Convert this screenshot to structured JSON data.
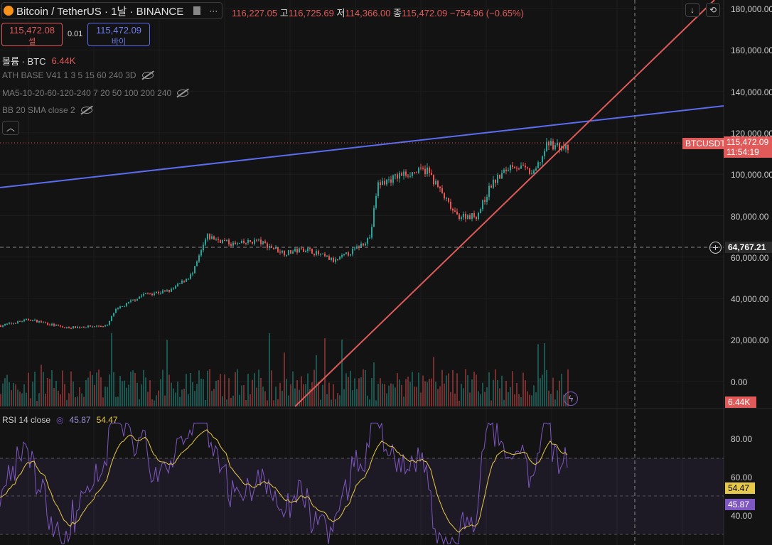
{
  "header": {
    "symbol": "Bitcoin / TetherUS · 1날 · BINANCE",
    "more": "···",
    "open": "116,227.05",
    "high_label": "고",
    "high": "116,725.69",
    "low_label": "저",
    "low": "114,366.00",
    "close_label": "종",
    "close": "115,472.09",
    "change": "−754.96 (−0.65%)"
  },
  "sell": {
    "price": "115,472.08",
    "label": "셀"
  },
  "spread": "0.01",
  "buy": {
    "price": "115,472.09",
    "label": "바이"
  },
  "indicators": {
    "volume_label": "볼륨 · BTC",
    "volume_value": "6.44K",
    "ath": "ATH BASE V41 1 3 5 15 60 240 3D",
    "ma": "MA5-10-20-60-120-240 7 20 50 100 200 240",
    "bb": "BB 20 SMA close 2"
  },
  "price_axis": [
    "180,000.00",
    "160,000.00",
    "140,000.00",
    "120,000.00",
    "100,000.00",
    "80,000.00",
    "60,000.00",
    "40,000.00",
    "20,000.00",
    "0.00"
  ],
  "last": {
    "symbol": "BTCUSDT",
    "price": "115,472.09",
    "countdown": "11:54:19"
  },
  "crosshair_price": "64,767.21",
  "volume_tag": "6.44K",
  "rsi": {
    "label": "RSI 14 close",
    "value": "45.87",
    "ma": "54.47",
    "axis": [
      "80.00",
      "60.00",
      "40.00"
    ]
  },
  "colors": {
    "up": "#26a69a",
    "down": "#ef5350",
    "blue_line": "#5b6cf0",
    "red_line": "#e05a5a",
    "rsi": "#7e57c2",
    "rsi_ma": "#e6c84a"
  },
  "chart_data": {
    "type": "candlestick",
    "price_path": [
      [
        0,
        27000
      ],
      [
        40,
        30000
      ],
      [
        90,
        26000
      ],
      [
        150,
        27000
      ],
      [
        160,
        34000
      ],
      [
        200,
        42000
      ],
      [
        240,
        44000
      ],
      [
        270,
        52000
      ],
      [
        290,
        70000
      ],
      [
        330,
        66000
      ],
      [
        360,
        68000
      ],
      [
        400,
        62000
      ],
      [
        430,
        64000
      ],
      [
        470,
        58000
      ],
      [
        500,
        64000
      ],
      [
        520,
        70000
      ],
      [
        530,
        95000
      ],
      [
        565,
        100000
      ],
      [
        600,
        102000
      ],
      [
        640,
        80000
      ],
      [
        670,
        80000
      ],
      [
        690,
        95000
      ],
      [
        720,
        105000
      ],
      [
        750,
        100000
      ],
      [
        770,
        115000
      ],
      [
        800,
        112000
      ]
    ]
  }
}
